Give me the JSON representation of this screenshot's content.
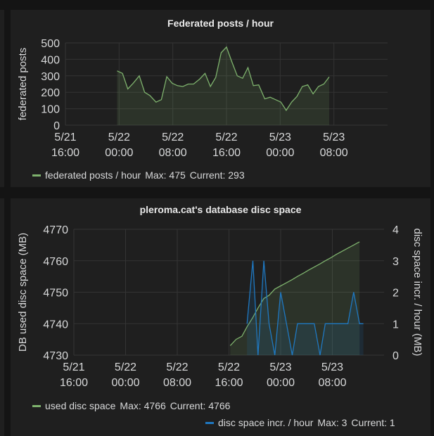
{
  "panels": [
    {
      "title": "Federated posts / hour",
      "legend": [
        {
          "name": "federated posts / hour",
          "max": "Max: 475",
          "current": "Current: 293",
          "color": "#7eb26d"
        }
      ]
    },
    {
      "title": "pleroma.cat's database disc space",
      "legend": [
        {
          "name": "used disc space",
          "max": "Max: 4766",
          "current": "Current: 4766",
          "color": "#7eb26d"
        },
        {
          "name": "disc space incr. / hour",
          "max": "Max: 3",
          "current": "Current: 1",
          "color": "#1f78c1"
        }
      ]
    }
  ],
  "chart_data": [
    {
      "type": "line",
      "title": "Federated posts / hour",
      "ylabel": "federated posts",
      "ylim": [
        0,
        500
      ],
      "yticks": [
        "0",
        "100",
        "200",
        "300",
        "400",
        "500"
      ],
      "xlim_hours": [
        0,
        48
      ],
      "xticks": [
        {
          "h": 0,
          "l1": "5/21",
          "l2": "16:00"
        },
        {
          "h": 8,
          "l1": "5/22",
          "l2": "00:00"
        },
        {
          "h": 16,
          "l1": "5/22",
          "l2": "08:00"
        },
        {
          "h": 24,
          "l1": "5/22",
          "l2": "16:00"
        },
        {
          "h": 32,
          "l1": "5/23",
          "l2": "00:00"
        },
        {
          "h": 40,
          "l1": "5/23",
          "l2": "08:00"
        }
      ],
      "grid": true,
      "series": [
        {
          "name": "federated posts / hour",
          "color": "#7eb26d",
          "points": [
            [
              7.7,
              330
            ],
            [
              8.5,
              315
            ],
            [
              9.3,
              220
            ],
            [
              10.1,
              255
            ],
            [
              11.0,
              300
            ],
            [
              11.8,
              200
            ],
            [
              12.6,
              180
            ],
            [
              13.5,
              140
            ],
            [
              14.3,
              155
            ],
            [
              15.1,
              295
            ],
            [
              15.9,
              255
            ],
            [
              16.7,
              240
            ],
            [
              17.5,
              235
            ],
            [
              18.3,
              250
            ],
            [
              19.1,
              250
            ],
            [
              20.0,
              280
            ],
            [
              20.8,
              315
            ],
            [
              21.6,
              235
            ],
            [
              22.4,
              290
            ],
            [
              23.2,
              440
            ],
            [
              24.0,
              475
            ],
            [
              24.8,
              385
            ],
            [
              25.6,
              300
            ],
            [
              26.4,
              285
            ],
            [
              27.2,
              350
            ],
            [
              28.0,
              240
            ],
            [
              28.8,
              245
            ],
            [
              29.7,
              160
            ],
            [
              30.5,
              170
            ],
            [
              31.3,
              155
            ],
            [
              32.1,
              140
            ],
            [
              32.9,
              90
            ],
            [
              33.7,
              140
            ],
            [
              34.5,
              175
            ],
            [
              35.3,
              235
            ],
            [
              36.1,
              245
            ],
            [
              36.9,
              190
            ],
            [
              37.7,
              235
            ],
            [
              38.5,
              250
            ],
            [
              39.3,
              293
            ]
          ]
        }
      ]
    },
    {
      "type": "line",
      "title": "pleroma.cat's database disc space",
      "ylabel": "DB used disc space (MB)",
      "y2label": "disc space incr. / hour (MB)",
      "ylim": [
        4730,
        4770
      ],
      "yticks": [
        "4730",
        "4740",
        "4750",
        "4760",
        "4770"
      ],
      "y2lim": [
        0,
        4
      ],
      "y2ticks": [
        "0",
        "1",
        "2",
        "3",
        "4"
      ],
      "xlim_hours": [
        0,
        48
      ],
      "xticks": [
        {
          "h": 0,
          "l1": "5/21",
          "l2": "16:00"
        },
        {
          "h": 8,
          "l1": "5/22",
          "l2": "00:00"
        },
        {
          "h": 16,
          "l1": "5/22",
          "l2": "08:00"
        },
        {
          "h": 24,
          "l1": "5/22",
          "l2": "16:00"
        },
        {
          "h": 32,
          "l1": "5/23",
          "l2": "00:00"
        },
        {
          "h": 40,
          "l1": "5/23",
          "l2": "08:00"
        }
      ],
      "grid": true,
      "series": [
        {
          "name": "used disc space",
          "axis": "left",
          "color": "#7eb26d",
          "points": [
            [
              24.2,
              4733
            ],
            [
              25.1,
              4735
            ],
            [
              26.0,
              4736
            ],
            [
              26.8,
              4739
            ],
            [
              27.7,
              4742
            ],
            [
              28.5,
              4745
            ],
            [
              29.4,
              4748
            ],
            [
              30.2,
              4749
            ],
            [
              31.1,
              4751
            ],
            [
              32.0,
              4752
            ],
            [
              32.9,
              4753
            ],
            [
              33.8,
              4754
            ],
            [
              34.6,
              4755
            ],
            [
              35.5,
              4756
            ],
            [
              36.3,
              4757
            ],
            [
              37.2,
              4758
            ],
            [
              38.1,
              4759
            ],
            [
              38.9,
              4760
            ],
            [
              39.8,
              4761
            ],
            [
              40.6,
              4762
            ],
            [
              41.5,
              4763
            ],
            [
              42.4,
              4764
            ],
            [
              43.3,
              4765
            ],
            [
              44.2,
              4766
            ]
          ]
        },
        {
          "name": "disc space incr. / hour",
          "axis": "right",
          "color": "#1f78c1",
          "points": [
            [
              26.8,
              1
            ],
            [
              27.7,
              3
            ],
            [
              28.5,
              0
            ],
            [
              29.4,
              3
            ],
            [
              30.2,
              1
            ],
            [
              31.1,
              0
            ],
            [
              32.0,
              2
            ],
            [
              32.9,
              1
            ],
            [
              33.8,
              0
            ],
            [
              34.6,
              1
            ],
            [
              35.5,
              1
            ],
            [
              36.3,
              1
            ],
            [
              37.2,
              1
            ],
            [
              38.1,
              0
            ],
            [
              38.9,
              1
            ],
            [
              39.8,
              1
            ],
            [
              40.6,
              1
            ],
            [
              41.5,
              1
            ],
            [
              42.4,
              1
            ],
            [
              43.3,
              2
            ],
            [
              44.2,
              1
            ],
            [
              44.8,
              1
            ]
          ]
        }
      ]
    }
  ]
}
